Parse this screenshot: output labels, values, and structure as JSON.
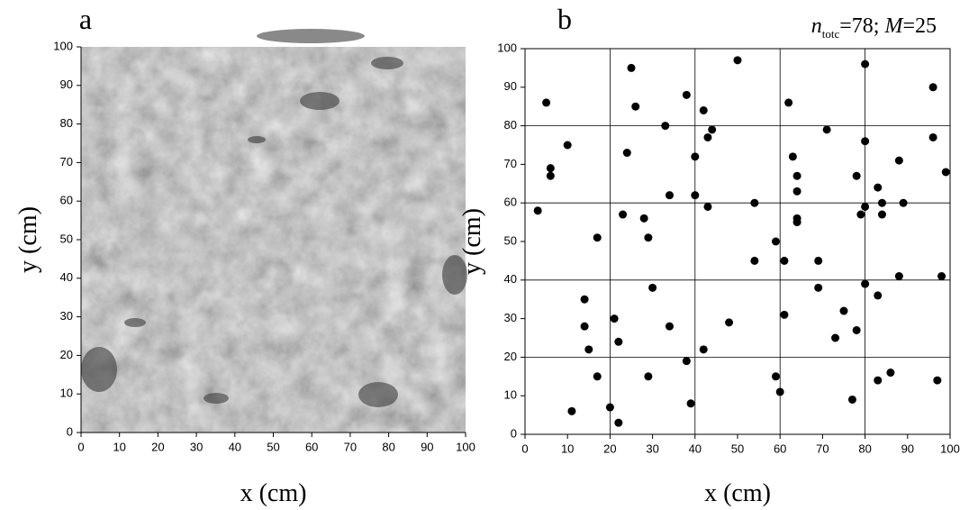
{
  "chart_data": [
    {
      "type": "image",
      "label": "a",
      "xlabel": "x (cm)",
      "ylabel": "y (cm)",
      "xlim": [
        0,
        100
      ],
      "ylim": [
        0,
        100
      ],
      "xticks": [
        0,
        10,
        20,
        30,
        40,
        50,
        60,
        70,
        80,
        90,
        100
      ],
      "yticks": [
        0,
        10,
        20,
        30,
        40,
        50,
        60,
        70,
        80,
        90,
        100
      ],
      "grid": false
    },
    {
      "type": "scatter",
      "label": "b",
      "xlabel": "x (cm)",
      "ylabel": "y (cm)",
      "annotation": [
        "n",
        "totc",
        "=78; ",
        "M",
        "=25"
      ],
      "xlim": [
        0,
        100
      ],
      "ylim": [
        0,
        100
      ],
      "xticks": [
        0,
        10,
        20,
        30,
        40,
        50,
        60,
        70,
        80,
        90,
        100
      ],
      "yticks": [
        0,
        10,
        20,
        30,
        40,
        50,
        60,
        70,
        80,
        90,
        100
      ],
      "grid_ticks": [
        20,
        40,
        60,
        80
      ],
      "grid": true,
      "color": "#000000",
      "x": [
        5,
        6,
        6,
        3,
        10,
        17,
        14,
        14,
        15,
        17,
        11,
        21,
        22,
        20,
        22,
        23,
        24,
        25,
        26,
        28,
        29,
        30,
        29,
        33,
        34,
        34,
        38,
        38,
        39,
        40,
        40,
        42,
        43,
        44,
        43,
        42,
        48,
        50,
        54,
        54,
        59,
        59,
        60,
        61,
        61,
        62,
        63,
        64,
        64,
        64,
        64,
        69,
        69,
        71,
        73,
        75,
        77,
        78,
        78,
        79,
        80,
        80,
        80,
        80,
        83,
        84,
        84,
        83,
        83,
        86,
        88,
        88,
        89,
        96,
        96,
        98,
        97,
        99
      ],
      "y": [
        86,
        69,
        67,
        58,
        75,
        51,
        35,
        28,
        22,
        15,
        6,
        30,
        24,
        7,
        3,
        57,
        73,
        95,
        85,
        56,
        51,
        38,
        15,
        80,
        62,
        28,
        88,
        19,
        8,
        62,
        72,
        84,
        77,
        79,
        59,
        22,
        29,
        97,
        60,
        45,
        50,
        15,
        11,
        45,
        31,
        86,
        72,
        67,
        63,
        56,
        55,
        45,
        38,
        79,
        25,
        32,
        9,
        67,
        27,
        57,
        96,
        76,
        59,
        39,
        64,
        60,
        57,
        36,
        14,
        16,
        71,
        41,
        60,
        90,
        77,
        41,
        14,
        68
      ]
    }
  ]
}
